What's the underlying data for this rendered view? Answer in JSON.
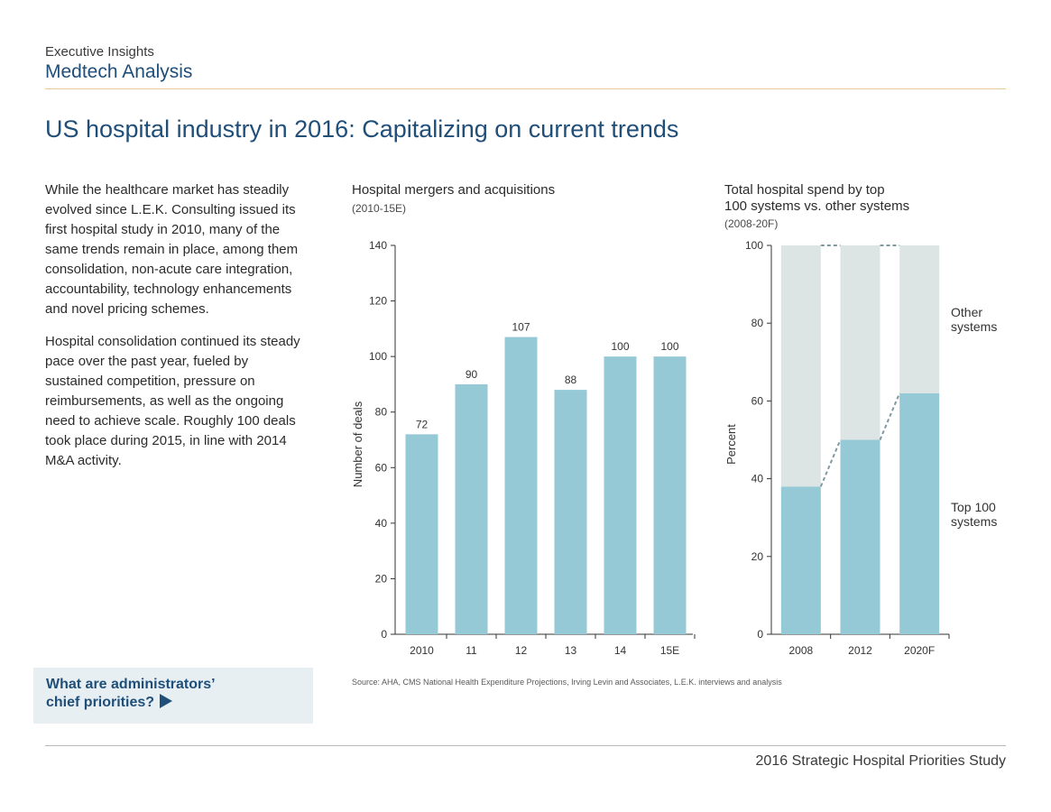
{
  "header": {
    "eyebrow": "Executive Insights",
    "section": "Medtech Analysis",
    "title": "US hospital industry in 2016: Capitalizing on current trends"
  },
  "intro": {
    "paragraphs": [
      "While the healthcare market has steadily evolved since L.E.K. Consulting issued its first hospital study in 2010, many of the same trends remain in place, among them consolidation, non-acute care integration, accountability, technology enhancements and novel pricing schemes.",
      "Hospital consolidation continued its steady pace over the past year, fueled by sustained competition, pressure on reimbursements, as well as the ongoing need to achieve scale. Roughly 100 deals took place during 2015, in line with 2014 M&A activity."
    ]
  },
  "cta": {
    "line1": "What are administrators’",
    "line2": "chief priorities?",
    "arrow_icon": "play-triangle-icon"
  },
  "source": "Source: AHA, CMS National Health Expenditure Projections, Irving Levin and Associates, L.E.K. interviews and analysis",
  "footer": "2016 Strategic Hospital Priorities Study",
  "colors": {
    "bar": "#96c9d6",
    "bar_light": "#dde5e4",
    "title_blue": "#1f4e79",
    "dash": "#7f9aa3"
  },
  "chart_data": [
    {
      "type": "bar",
      "title": "Hospital mergers and acquisitions",
      "subtitle": "(2010-15E)",
      "ylabel": "Number of deals",
      "xlabel": "",
      "ylim": [
        0,
        140
      ],
      "yticks": [
        0,
        20,
        40,
        60,
        80,
        100,
        120,
        140
      ],
      "categories": [
        "2010",
        "11",
        "12",
        "13",
        "14",
        "15E"
      ],
      "values": [
        72,
        90,
        107,
        88,
        100,
        100
      ],
      "data_labels": [
        "72",
        "90",
        "107",
        "88",
        "100",
        "100"
      ],
      "grid": false
    },
    {
      "type": "bar",
      "stacked": true,
      "title_line1": "Total hospital spend by top",
      "title_line2": "100 systems vs. other systems",
      "subtitle": "(2008-20F)",
      "ylabel": "Percent",
      "ylim": [
        0,
        100
      ],
      "yticks": [
        0,
        20,
        40,
        60,
        80,
        100
      ],
      "categories": [
        "2008",
        "2012",
        "2020F"
      ],
      "series": [
        {
          "name": "Top 100 systems",
          "name_line1": "Top 100",
          "name_line2": "systems",
          "values": [
            38,
            50,
            62
          ]
        },
        {
          "name": "Other systems",
          "name_line1": "Other",
          "name_line2": "systems",
          "values": [
            62,
            50,
            38
          ]
        }
      ],
      "legend": "right",
      "grid": false
    }
  ]
}
